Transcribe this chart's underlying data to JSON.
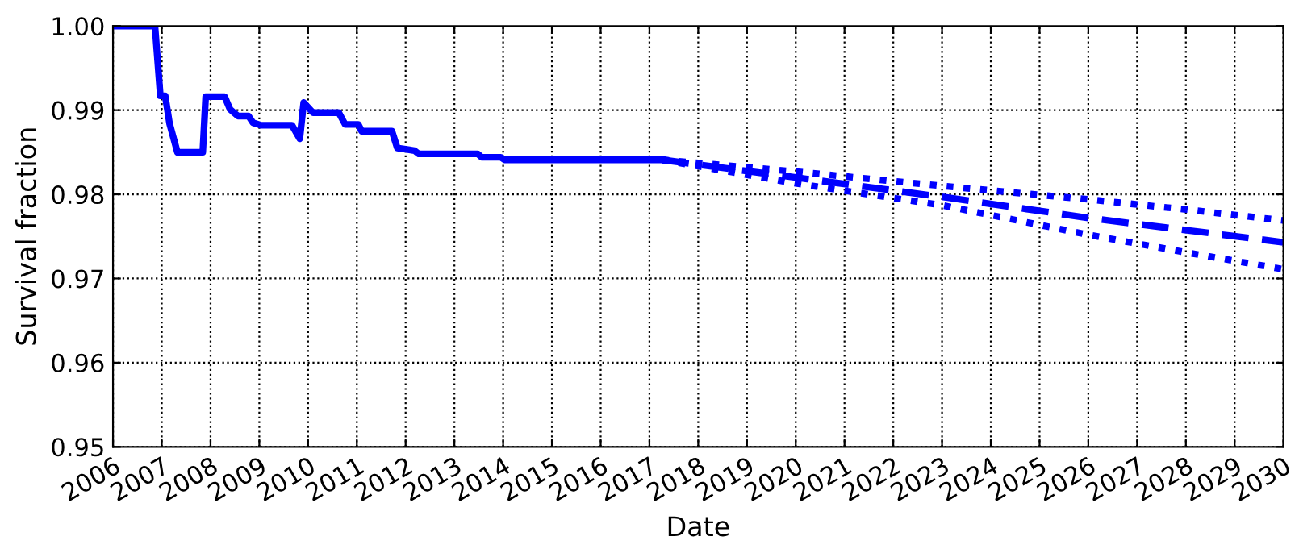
{
  "chart_data": {
    "type": "line",
    "xlabel": "Date",
    "ylabel": "Survival fraction",
    "xlim": [
      2006,
      2030
    ],
    "ylim": [
      0.95,
      1.0
    ],
    "xticks": [
      2006,
      2007,
      2008,
      2009,
      2010,
      2011,
      2012,
      2013,
      2014,
      2015,
      2016,
      2017,
      2018,
      2019,
      2020,
      2021,
      2022,
      2023,
      2024,
      2025,
      2026,
      2027,
      2028,
      2029,
      2030
    ],
    "yticks": [
      0.95,
      0.96,
      0.97,
      0.98,
      0.99,
      {
        "value": 1.0,
        "label": "1.00"
      }
    ],
    "grid": true,
    "series": [
      {
        "color": "#0000ff",
        "line_style": "solid",
        "x": [
          2006.0,
          2006.86,
          2006.97,
          2007.07,
          2007.16,
          2007.32,
          2007.84,
          2007.9,
          2008.29,
          2008.4,
          2008.56,
          2008.78,
          2008.87,
          2009.04,
          2009.67,
          2009.83,
          2009.91,
          2010.1,
          2010.63,
          2010.76,
          2011.03,
          2011.1,
          2011.72,
          2011.83,
          2012.18,
          2012.27,
          2013.48,
          2013.56,
          2013.95,
          2014.03,
          2017.26
        ],
        "values": [
          1.0,
          1.0,
          0.9917,
          0.9917,
          0.9884,
          0.985,
          0.985,
          0.9916,
          0.9916,
          0.9901,
          0.9893,
          0.9893,
          0.9885,
          0.9882,
          0.9882,
          0.9866,
          0.9909,
          0.9897,
          0.9897,
          0.9883,
          0.9883,
          0.9875,
          0.9875,
          0.9855,
          0.9852,
          0.9848,
          0.9848,
          0.9844,
          0.9844,
          0.9841,
          0.9841
        ]
      },
      {
        "color": "#0000ff",
        "line_style": "dashed",
        "x": [
          2017.26,
          2020,
          2023,
          2026,
          2030
        ],
        "values": [
          0.9841,
          0.982,
          0.9797,
          0.9772,
          0.9743
        ]
      },
      {
        "color": "#0000ff",
        "line_style": "dotted",
        "x": [
          2017.26,
          2020,
          2023,
          2026,
          2028,
          2030
        ],
        "values": [
          0.9841,
          0.9827,
          0.981,
          0.9794,
          0.9782,
          0.9769
        ]
      },
      {
        "color": "#0000ff",
        "line_style": "dotted",
        "x": [
          2017.26,
          2020,
          2023,
          2026,
          2028,
          2030
        ],
        "values": [
          0.9841,
          0.9813,
          0.9787,
          0.9752,
          0.9731,
          0.9711
        ]
      }
    ]
  }
}
